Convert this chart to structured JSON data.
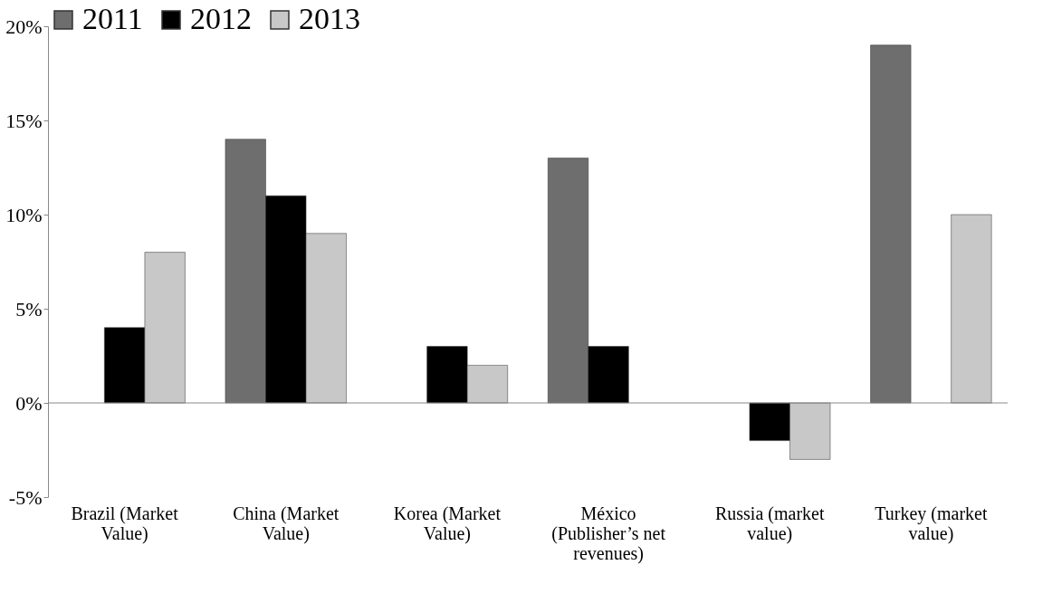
{
  "chart_data": {
    "type": "bar",
    "categories": [
      "Brazil (Market Value)",
      "China (Market Value)",
      "Korea (Market Value)",
      "México (Publisher’s net revenues)",
      "Russia (market value)",
      "Turkey (market value)"
    ],
    "series": [
      {
        "name": "2011",
        "color": "#6e6e6e",
        "values": [
          null,
          14,
          null,
          13,
          null,
          19
        ]
      },
      {
        "name": "2012",
        "color": "#000000",
        "values": [
          4,
          11,
          3,
          3,
          -2,
          null
        ]
      },
      {
        "name": "2013",
        "color": "#c8c8c8",
        "values": [
          8,
          9,
          2,
          null,
          -3,
          10
        ]
      }
    ],
    "ylim": [
      -5,
      20
    ],
    "yticks": [
      {
        "value": -5,
        "label": "-5%"
      },
      {
        "value": 0,
        "label": "0%"
      },
      {
        "value": 5,
        "label": "5%"
      },
      {
        "value": 10,
        "label": "10%"
      },
      {
        "value": 15,
        "label": "15%"
      },
      {
        "value": 20,
        "label": "20%"
      }
    ],
    "legend": "top"
  }
}
